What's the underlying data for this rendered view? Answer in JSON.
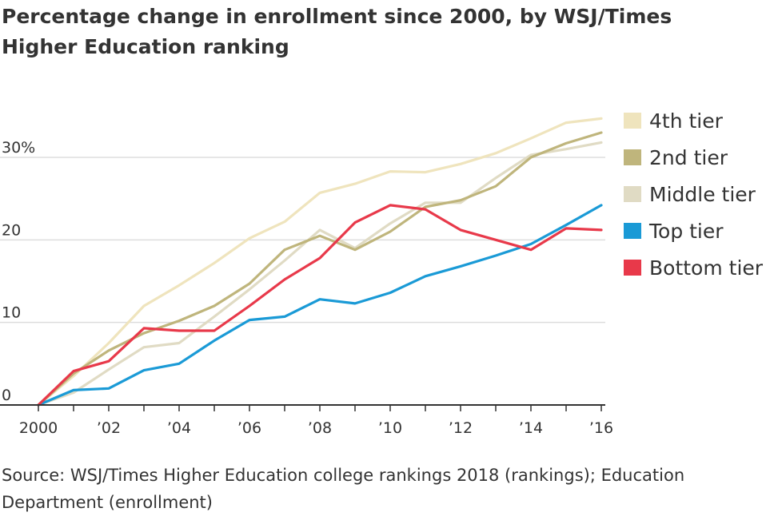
{
  "title": "Percentage change in enrollment since 2000, by WSJ/Times Higher Education ranking",
  "source": "Source: WSJ/Times Higher Education college rankings 2018 (rankings); Education Department (enrollment)",
  "colors": {
    "4th tier": "#efe4bd",
    "2nd tier": "#bfb57c",
    "Middle tier": "#e0dbc4",
    "Top tier": "#1a9ad6",
    "Bottom tier": "#e8394a",
    "grid": "#dddddd",
    "axis": "#333333"
  },
  "chart_data": {
    "type": "line",
    "title": "Percentage change in enrollment since 2000, by WSJ/Times Higher Education ranking",
    "xlabel": "",
    "ylabel": "",
    "x": [
      2000,
      2001,
      2002,
      2003,
      2004,
      2005,
      2006,
      2007,
      2008,
      2009,
      2010,
      2011,
      2012,
      2013,
      2014,
      2015,
      2016
    ],
    "x_tick_labels": [
      "2000",
      "’02",
      "’04",
      "’06",
      "’08",
      "’10",
      "’12",
      "’14",
      "’16"
    ],
    "x_tick_values": [
      2000,
      2002,
      2004,
      2006,
      2008,
      2010,
      2012,
      2014,
      2016
    ],
    "y_tick_labels": [
      "0",
      "10",
      "20",
      "30%"
    ],
    "y_tick_values": [
      0,
      10,
      20,
      30
    ],
    "ylim": [
      0,
      34.5
    ],
    "xlim": [
      2000,
      2016.2
    ],
    "grid": true,
    "legend_position": "right",
    "draw_order": [
      "4th tier",
      "Middle tier",
      "2nd tier",
      "Top tier",
      "Bottom tier"
    ],
    "series": [
      {
        "name": "4th tier",
        "values": [
          0,
          3.5,
          7.5,
          12,
          14.5,
          17.2,
          20.2,
          22.2,
          25.7,
          26.8,
          28.3,
          28.2,
          29.2,
          30.5,
          32.3,
          34.2,
          34.7
        ]
      },
      {
        "name": "2nd tier",
        "values": [
          0,
          3.8,
          6.6,
          8.7,
          10.2,
          12,
          14.7,
          18.8,
          20.5,
          18.8,
          21,
          24,
          24.8,
          26.5,
          30,
          31.7,
          33
        ]
      },
      {
        "name": "Middle tier",
        "values": [
          0,
          1.5,
          4.3,
          7,
          7.5,
          10.7,
          14,
          17.5,
          21.2,
          19,
          22,
          24.5,
          24.5,
          27.5,
          30.3,
          31,
          31.8
        ]
      },
      {
        "name": "Top tier",
        "values": [
          0,
          1.8,
          2,
          4.2,
          5,
          7.8,
          10.3,
          10.7,
          12.8,
          12.3,
          13.6,
          15.6,
          16.8,
          18.1,
          19.5,
          21.8,
          24.2
        ]
      },
      {
        "name": "Bottom tier",
        "values": [
          0,
          4.1,
          5.3,
          9.3,
          9,
          9,
          12,
          15.2,
          17.8,
          22.1,
          24.2,
          23.7,
          21.2,
          20,
          18.8,
          21.4,
          21.2
        ]
      }
    ],
    "legend": [
      "4th tier",
      "2nd tier",
      "Middle tier",
      "Top tier",
      "Bottom tier"
    ]
  }
}
